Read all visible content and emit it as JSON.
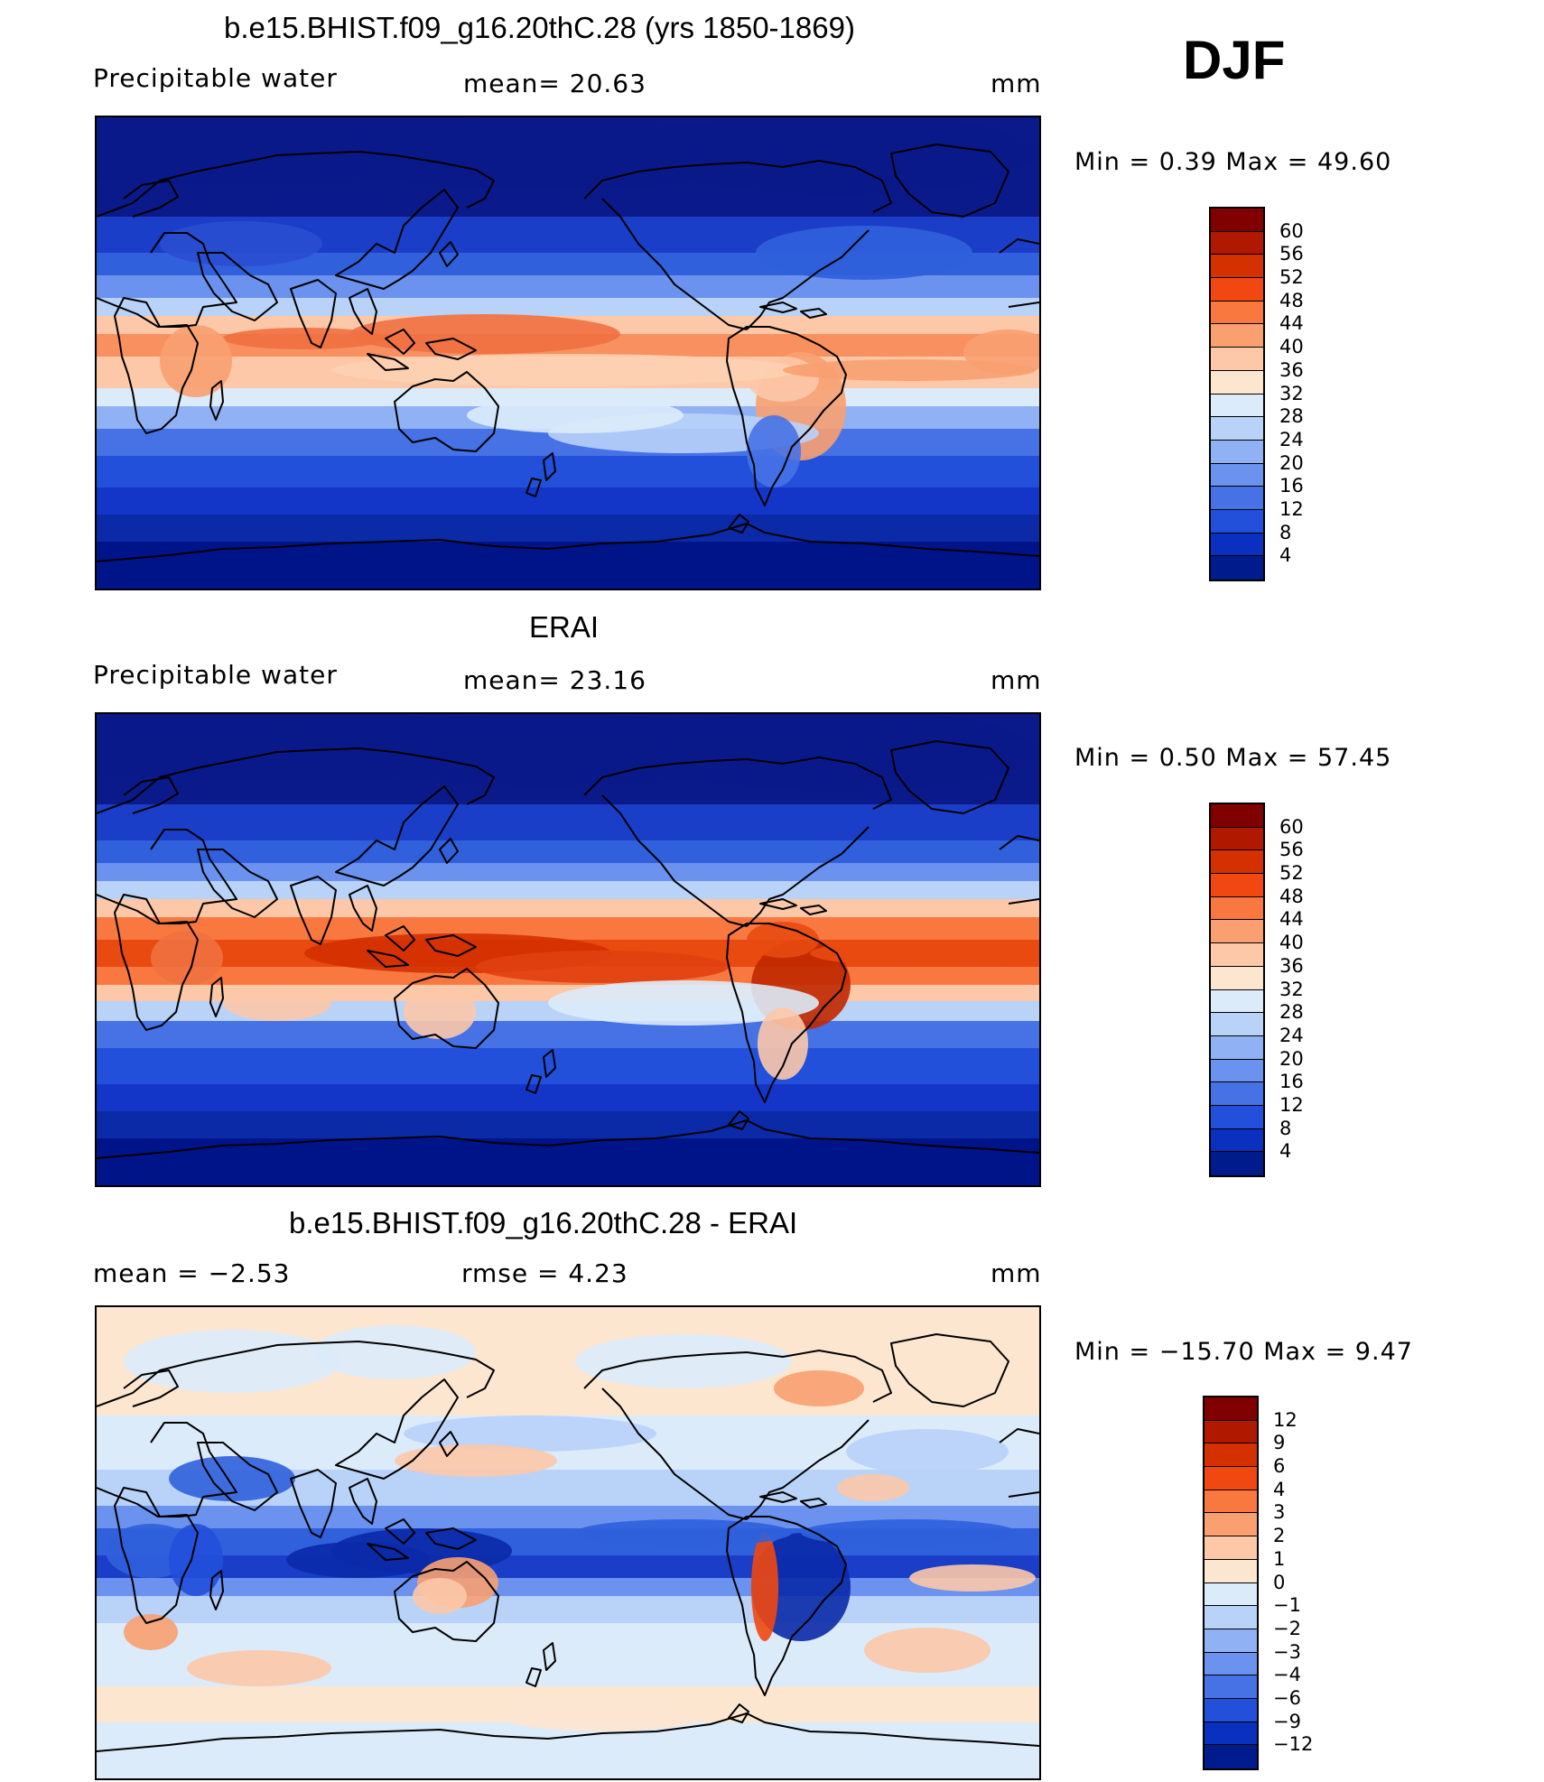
{
  "season": "DJF",
  "panels": [
    {
      "id": "model",
      "title": "b.e15.BHIST.f09_g16.20thC.28 (yrs 1850-1869)",
      "left_label": "Precipitable  water",
      "center_label": "mean=   20.63",
      "units": "mm",
      "minmax": "Min  =     0.39  Max  =    49.60",
      "colorbar": {
        "labels": [
          "60",
          "56",
          "52",
          "48",
          "44",
          "40",
          "36",
          "32",
          "28",
          "24",
          "20",
          "16",
          "12",
          "8",
          "4"
        ],
        "colors": [
          "#800000",
          "#b01800",
          "#d43000",
          "#f04810",
          "#f87840",
          "#faa070",
          "#fcc8a8",
          "#fde6d0",
          "#dcebfa",
          "#b8d2f8",
          "#90b2f4",
          "#6a92ee",
          "#4672e6",
          "#2250da",
          "#0a30c0",
          "#001c8c"
        ]
      },
      "scene": "model"
    },
    {
      "id": "obs",
      "title": "ERAI",
      "left_label": "Precipitable  water",
      "center_label": "mean=   23.16",
      "units": "mm",
      "minmax": "Min  =     0.50  Max  =    57.45",
      "colorbar": {
        "labels": [
          "60",
          "56",
          "52",
          "48",
          "44",
          "40",
          "36",
          "32",
          "28",
          "24",
          "20",
          "16",
          "12",
          "8",
          "4"
        ],
        "colors": [
          "#800000",
          "#b01800",
          "#d43000",
          "#f04810",
          "#f87840",
          "#faa070",
          "#fcc8a8",
          "#fde6d0",
          "#dcebfa",
          "#b8d2f8",
          "#90b2f4",
          "#6a92ee",
          "#4672e6",
          "#2250da",
          "#0a30c0",
          "#001c8c"
        ]
      },
      "scene": "obs"
    },
    {
      "id": "diff",
      "title": "b.e15.BHIST.f09_g16.20thC.28 - ERAI",
      "left_label": "mean  =    −2.53",
      "center_label": "rmse  =     4.23",
      "units": "mm",
      "minmax": "Min  = −15.70  Max  =      9.47",
      "colorbar": {
        "labels": [
          "12",
          "9",
          "6",
          "4",
          "3",
          "2",
          "1",
          "0",
          "−1",
          "−2",
          "−3",
          "−4",
          "−6",
          "−9",
          "−12"
        ],
        "colors": [
          "#800000",
          "#b01800",
          "#d43000",
          "#f04810",
          "#f87840",
          "#faa070",
          "#fcc8a8",
          "#fde6d0",
          "#dcebfa",
          "#b8d2f8",
          "#90b2f4",
          "#6a92ee",
          "#4672e6",
          "#2250da",
          "#0a30c0",
          "#001c8c"
        ]
      },
      "scene": "diff"
    }
  ]
}
